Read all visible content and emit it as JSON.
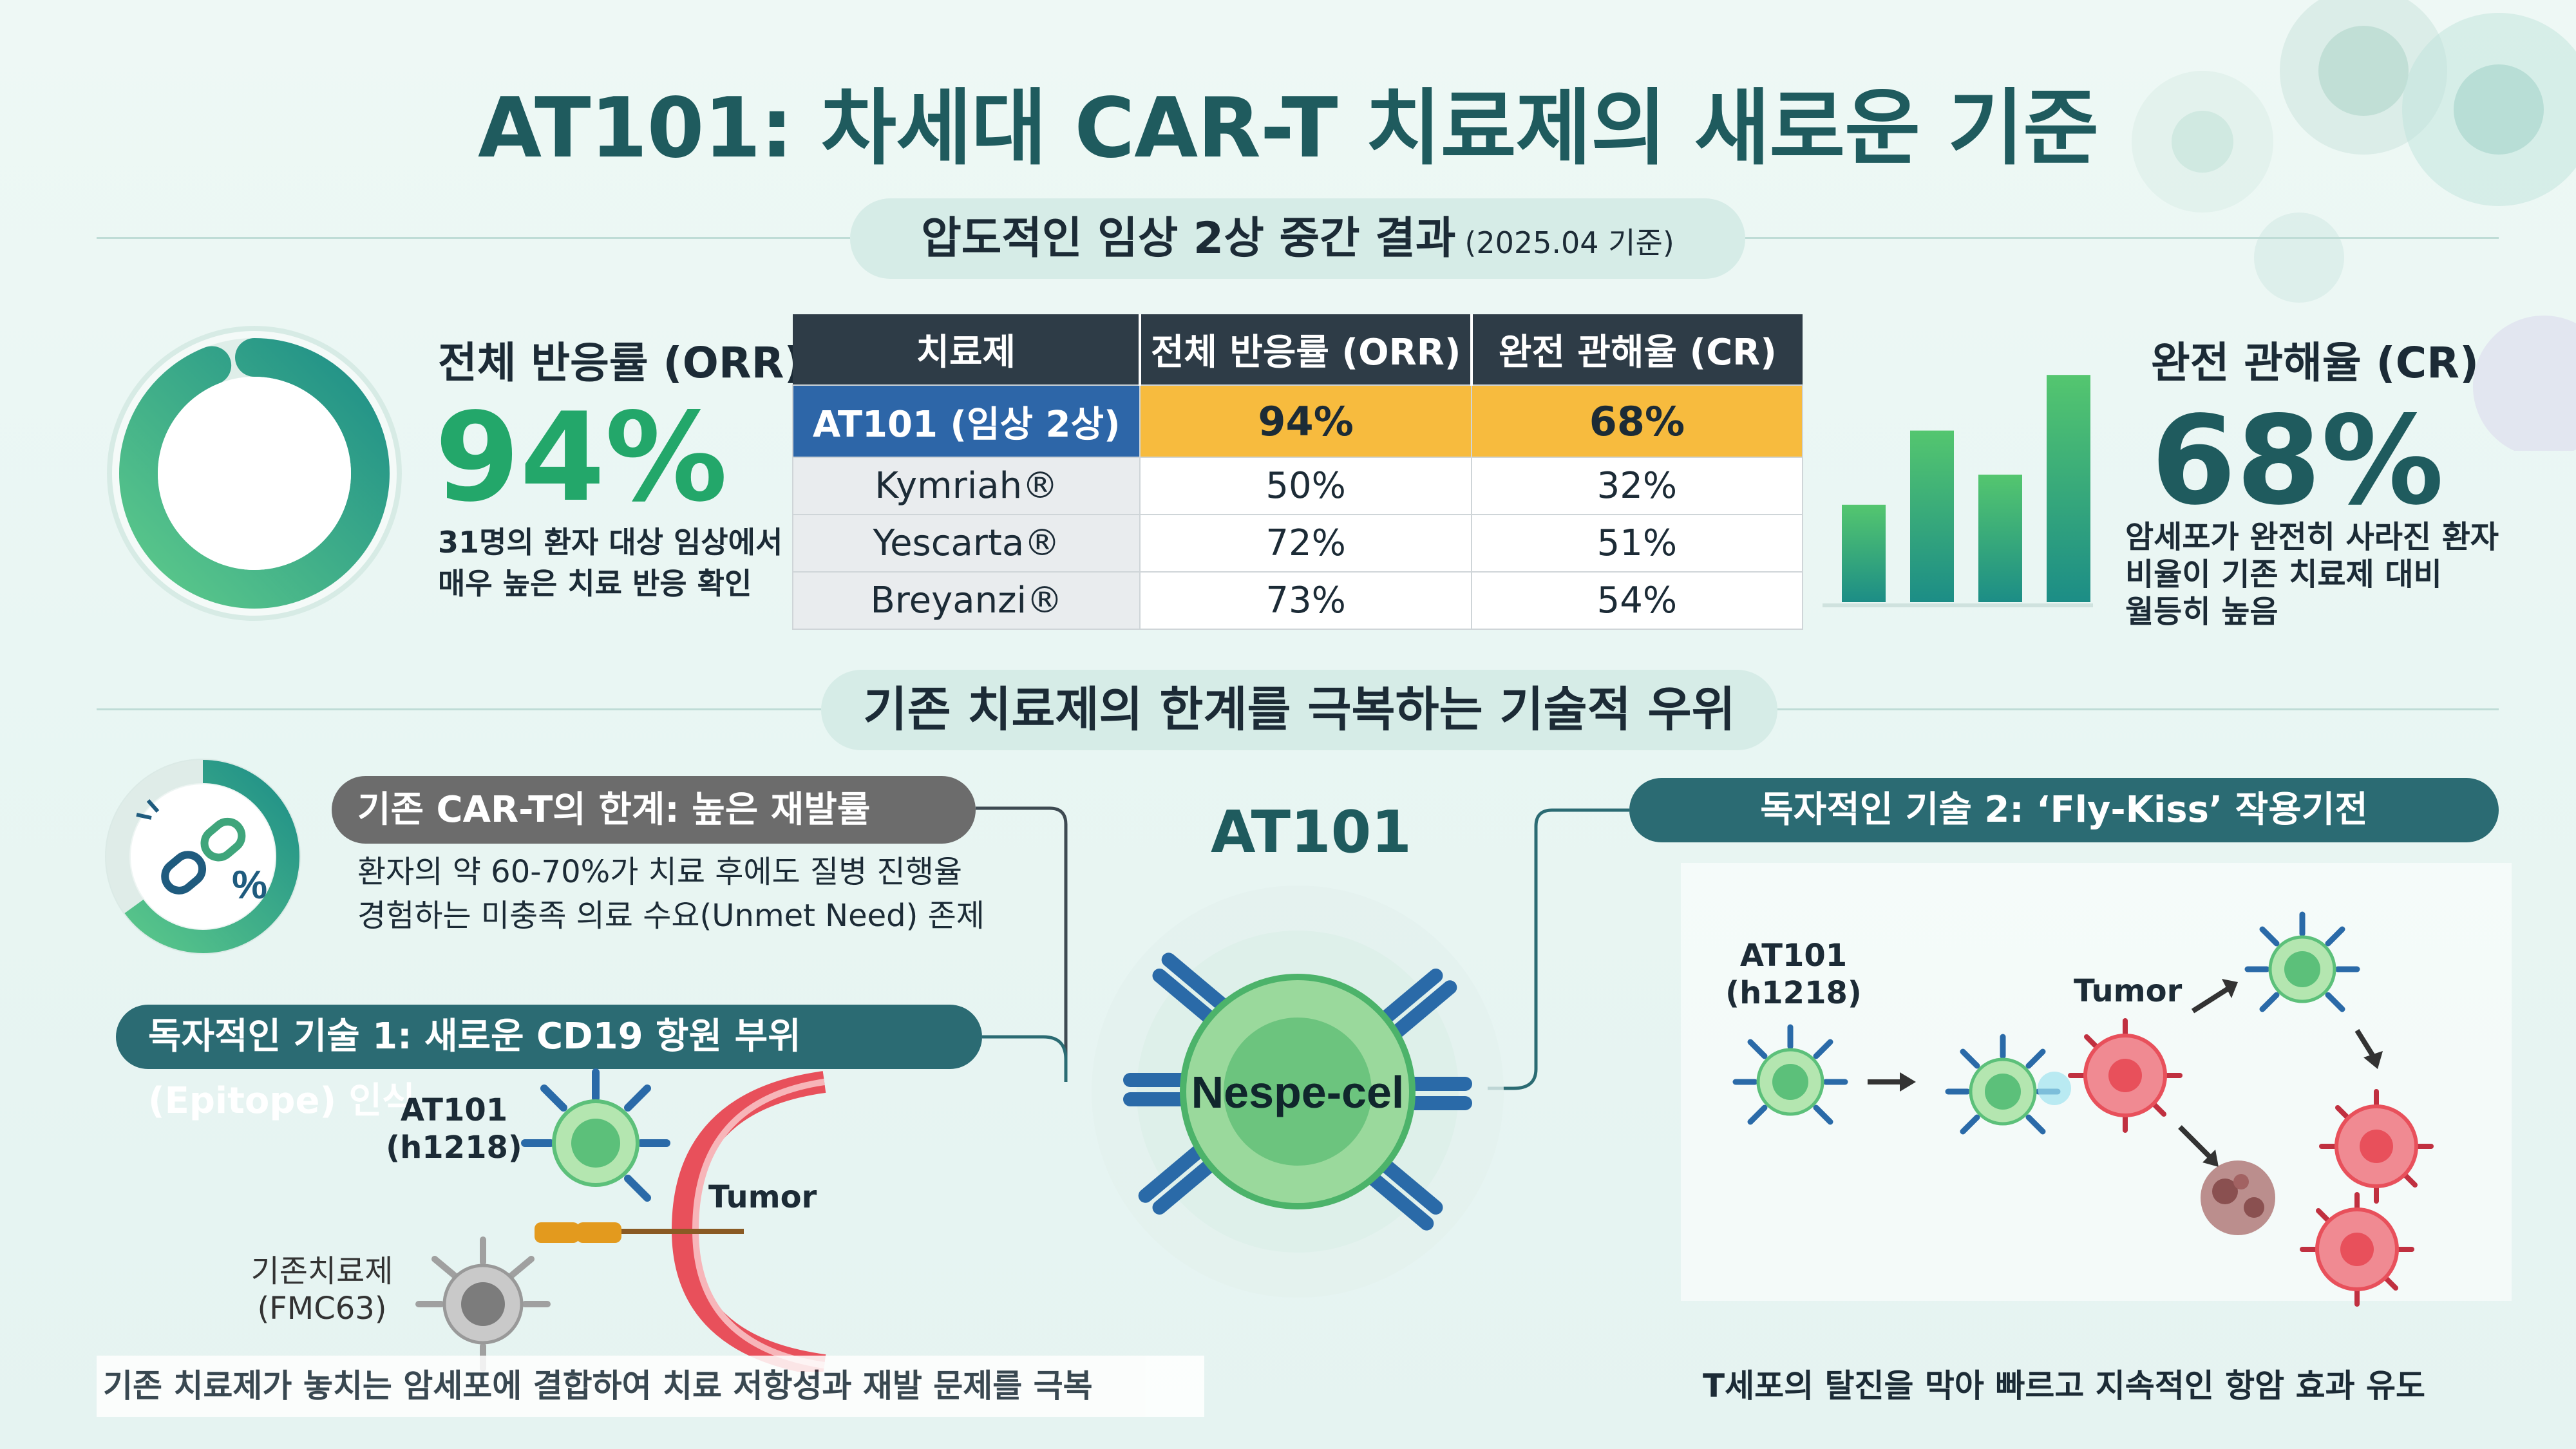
{
  "title": "AT101: 차세대 CAR-T 치료제의 새로운 기준",
  "section1": {
    "label": "압도적인 임상 2상 중간 결과",
    "date": "(2025.04 기준)"
  },
  "orr": {
    "label": "전체 반응률 (ORR)",
    "value": "94%",
    "fraction": 0.94,
    "desc_line1": "31명의 환자 대상 임상에서",
    "desc_line2": "매우 높은 치료 반응 확인"
  },
  "table": {
    "headers": [
      "치료제",
      "전체 반응률 (ORR)",
      "완전 관해율 (CR)"
    ],
    "rows": [
      {
        "name": "AT101 (임상 2상)",
        "orr": "94%",
        "cr": "68%"
      },
      {
        "name": "Kymriah®",
        "orr": "50%",
        "cr": "32%"
      },
      {
        "name": "Yescarta®",
        "orr": "72%",
        "cr": "51%"
      },
      {
        "name": "Breyanzi®",
        "orr": "73%",
        "cr": "54%"
      }
    ]
  },
  "cr": {
    "label": "완전 관해율 (CR)",
    "value": "68%",
    "desc_line1": "암세포가 완전히 사라진 환자",
    "desc_line2": "비율이 기존 치료제 대비",
    "desc_line3": "월등히 높음"
  },
  "bar_icon_levels": [
    0.42,
    0.74,
    0.55,
    0.98
  ],
  "section2": {
    "label": "기존 치료제의 한계를 극복하는 기술적 우위"
  },
  "limit": {
    "title": "기존 CAR-T의 한계: 높은 재발률",
    "desc_line1": "환자의 약 60-70%가 치료 후에도 질병 진행율",
    "desc_line2": "경험하는 미충족 의료 수요(Unmet Need) 존제",
    "icon_symbol": "%",
    "icon": "broken-link-icon",
    "fraction": 0.65
  },
  "tech1": {
    "title": "독자적인 기술 1: 새로운 CD19 항원 부위(Epitope) 인식",
    "at101_line1": "AT101",
    "at101_line2": "(h1218)",
    "tumor": "Tumor",
    "existing_line1": "기존치료제",
    "existing_line2": "(FMC63)",
    "caption": "기존 치료제가 놓치는 암세포에 결합하여 치료 저항성과 재발 문제를 극복"
  },
  "center": {
    "title": "AT101",
    "cell_label": "Nespe-cel"
  },
  "tech2": {
    "title": "독자적인 기술 2: ‘Fly-Kiss’ 작용기전",
    "at101_line1": "AT101",
    "at101_line2": "(h1218)",
    "tumor": "Tumor",
    "caption": "T세포의 탈진을 막아 빠르고 지속적인 항암 효과 유도"
  },
  "colors": {
    "primary": "#1f5b5e",
    "green": "#23a76a",
    "highlight": "#f7bb3e",
    "blue": "#2d66a8",
    "tumor": "#e8505b"
  }
}
